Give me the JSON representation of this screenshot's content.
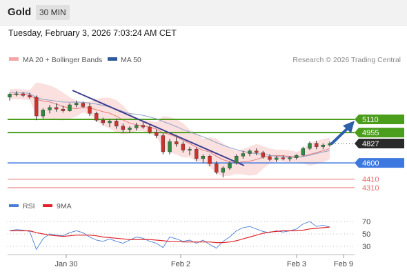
{
  "header": {
    "title": "Gold",
    "interval": "30 MIN"
  },
  "timestamp": "Tuesday, February 3, 2026 7:03:24 AM CET",
  "legend": {
    "bollinger": "MA 20 + Bollinger Bands",
    "ma50": "MA 50",
    "credit": "Research © 2026 Trading Central"
  },
  "colors": {
    "bollinger": "#f4a6a6",
    "ma50": "#2c5a9c",
    "up_candle": "#2d8a3e",
    "down_candle": "#d2302a",
    "resistance_line": "#4a9e1c",
    "pivot_line": "#3d78e0",
    "support_line": "#e66a6a",
    "rsi": "#4a7fd4",
    "rsi_ma": "#e0242a"
  },
  "chart_data": [
    {
      "type": "candlestick",
      "instrument": "Gold",
      "interval": "30 MIN",
      "ylim": [
        4250,
        5600
      ],
      "x_ticks": [
        "Jan 30",
        "Feb 2",
        "Feb 3",
        "Feb 9"
      ],
      "levels": [
        {
          "label": "5110",
          "value": 5110,
          "kind": "resistance"
        },
        {
          "label": "4955",
          "value": 4955,
          "kind": "resistance"
        },
        {
          "label": "4827",
          "value": 4827,
          "kind": "last_price"
        },
        {
          "label": "4600",
          "value": 4600,
          "kind": "pivot"
        },
        {
          "label": "4410",
          "value": 4410,
          "kind": "support"
        },
        {
          "label": "4310",
          "value": 4310,
          "kind": "support"
        }
      ],
      "series": [
        {
          "name": "MA 20 + Bollinger Bands",
          "indicator": "bollinger"
        },
        {
          "name": "MA 50",
          "indicator": "sma"
        }
      ],
      "ohlc_approx": [
        [
          5370,
          5420,
          5330,
          5405
        ],
        [
          5405,
          5440,
          5380,
          5410
        ],
        [
          5410,
          5430,
          5370,
          5390
        ],
        [
          5390,
          5420,
          5350,
          5370
        ],
        [
          5370,
          5390,
          5100,
          5150
        ],
        [
          5150,
          5240,
          5120,
          5220
        ],
        [
          5220,
          5280,
          5180,
          5250
        ],
        [
          5250,
          5300,
          5200,
          5230
        ],
        [
          5230,
          5270,
          5190,
          5210
        ],
        [
          5210,
          5300,
          5200,
          5280
        ],
        [
          5280,
          5330,
          5250,
          5300
        ],
        [
          5300,
          5320,
          5240,
          5260
        ],
        [
          5260,
          5300,
          5150,
          5180
        ],
        [
          5180,
          5200,
          5080,
          5100
        ],
        [
          5100,
          5130,
          5040,
          5070
        ],
        [
          5070,
          5110,
          5020,
          5090
        ],
        [
          5090,
          5120,
          5000,
          5030
        ],
        [
          5030,
          5060,
          4960,
          4990
        ],
        [
          4990,
          5030,
          4950,
          5010
        ],
        [
          5010,
          5070,
          4980,
          5040
        ],
        [
          5040,
          5080,
          5000,
          5020
        ],
        [
          5020,
          5050,
          4940,
          4960
        ],
        [
          4960,
          4990,
          4890,
          4920
        ],
        [
          4920,
          4950,
          4700,
          4730
        ],
        [
          4730,
          4880,
          4700,
          4850
        ],
        [
          4850,
          4900,
          4790,
          4820
        ],
        [
          4820,
          4850,
          4720,
          4750
        ],
        [
          4750,
          4790,
          4690,
          4760
        ],
        [
          4760,
          4780,
          4620,
          4650
        ],
        [
          4650,
          4700,
          4600,
          4680
        ],
        [
          4680,
          4700,
          4560,
          4590
        ],
        [
          4590,
          4620,
          4470,
          4490
        ],
        [
          4490,
          4560,
          4430,
          4540
        ],
        [
          4540,
          4620,
          4520,
          4600
        ],
        [
          4600,
          4700,
          4580,
          4680
        ],
        [
          4680,
          4740,
          4650,
          4710
        ],
        [
          4710,
          4760,
          4680,
          4740
        ],
        [
          4740,
          4770,
          4690,
          4720
        ],
        [
          4720,
          4740,
          4650,
          4670
        ],
        [
          4670,
          4700,
          4620,
          4640
        ],
        [
          4640,
          4680,
          4610,
          4660
        ],
        [
          4660,
          4690,
          4630,
          4650
        ],
        [
          4650,
          4680,
          4620,
          4660
        ],
        [
          4660,
          4700,
          4640,
          4690
        ],
        [
          4690,
          4790,
          4680,
          4770
        ],
        [
          4770,
          4850,
          4750,
          4830
        ],
        [
          4830,
          4860,
          4760,
          4790
        ],
        [
          4790,
          4830,
          4760,
          4810
        ],
        [
          4810,
          4850,
          4790,
          4827
        ]
      ]
    },
    {
      "type": "line",
      "name": "RSI",
      "series": [
        {
          "name": "RSI",
          "values": [
            55,
            57,
            56,
            54,
            25,
            42,
            50,
            48,
            47,
            52,
            55,
            52,
            45,
            40,
            38,
            42,
            38,
            35,
            40,
            45,
            43,
            38,
            35,
            28,
            45,
            42,
            38,
            40,
            35,
            40,
            33,
            27,
            38,
            45,
            55,
            60,
            62,
            58,
            54,
            52,
            55,
            53,
            55,
            58,
            66,
            70,
            62,
            64,
            61
          ]
        },
        {
          "name": "9MA",
          "values": [
            55,
            55,
            55,
            55,
            52,
            50,
            48,
            47,
            46,
            47,
            48,
            48,
            48,
            47,
            45,
            44,
            43,
            42,
            41,
            41,
            41,
            41,
            40,
            39,
            38,
            38,
            37,
            37,
            37,
            37,
            37,
            36,
            36,
            37,
            39,
            42,
            45,
            48,
            51,
            53,
            54,
            55,
            55,
            55,
            56,
            58,
            59,
            60,
            61
          ]
        }
      ],
      "ylim": [
        20,
        80
      ],
      "y_ticks": [
        "70",
        "50",
        "30"
      ]
    }
  ]
}
